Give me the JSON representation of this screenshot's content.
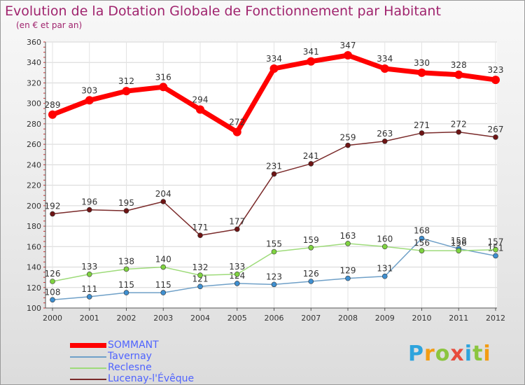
{
  "title": "Evolution de la Dotation Globale de Fonctionnement par Habitant",
  "subtitle": "(en € et par an)",
  "logo": {
    "letters": [
      "P",
      "r",
      "o",
      "x",
      "i",
      "t",
      "i"
    ],
    "colors": [
      "#2ea4dd",
      "#f39c12",
      "#8bc53f",
      "#e84c3d",
      "#2ea4dd",
      "#8bc53f",
      "#f39c12"
    ]
  },
  "chart_data": {
    "type": "line",
    "title": "Evolution de la Dotation Globale de Fonctionnement par Habitant",
    "subtitle": "(en € et par an)",
    "xlabel": "",
    "ylabel": "",
    "categories": [
      "2000",
      "2001",
      "2002",
      "2003",
      "2004",
      "2005",
      "2006",
      "2007",
      "2008",
      "2009",
      "2010",
      "2011",
      "2012"
    ],
    "y_ticks": [
      100,
      120,
      140,
      160,
      180,
      200,
      220,
      240,
      260,
      280,
      300,
      320,
      340,
      360
    ],
    "ylim": [
      100,
      360
    ],
    "grid": true,
    "legend_position": "bottom-left",
    "series": [
      {
        "name": "SOMMANT",
        "color": "#ff0000",
        "point_color": "#ff0000",
        "values": [
          289,
          303,
          312,
          316,
          294,
          272,
          334,
          341,
          347,
          334,
          330,
          328,
          323
        ],
        "labels": [
          "289",
          "303",
          "312",
          "316",
          "294",
          "272",
          "334",
          "341",
          "347",
          "334",
          "330",
          "328",
          "323"
        ]
      },
      {
        "name": "Tavernay",
        "color": "#6fa0c8",
        "point_color": "#3f8fd0",
        "values": [
          108,
          111,
          115,
          115,
          121,
          124,
          123,
          126,
          129,
          131,
          168,
          158,
          151
        ],
        "labels": [
          "108",
          "111",
          "115",
          "115",
          "121",
          "124",
          "123",
          "126",
          "129",
          "131",
          "168",
          "158",
          "151"
        ]
      },
      {
        "name": "Reclesne",
        "color": "#9edb7a",
        "point_color": "#7fd340",
        "values": [
          126,
          133,
          138,
          140,
          132,
          133,
          155,
          159,
          163,
          160,
          156,
          156,
          157
        ],
        "labels": [
          "126",
          "133",
          "138",
          "140",
          "132",
          "133",
          "155",
          "159",
          "163",
          "160",
          "156",
          "156",
          "157"
        ]
      },
      {
        "name": "Lucenay-l'Évêque",
        "color": "#7a2a2a",
        "point_color": "#6e1414",
        "values": [
          192,
          196,
          195,
          204,
          171,
          177,
          231,
          241,
          259,
          263,
          271,
          272,
          267
        ],
        "labels": [
          "192",
          "196",
          "195",
          "204",
          "171",
          "177",
          "231",
          "241",
          "259",
          "263",
          "271",
          "272",
          "267"
        ]
      }
    ]
  }
}
